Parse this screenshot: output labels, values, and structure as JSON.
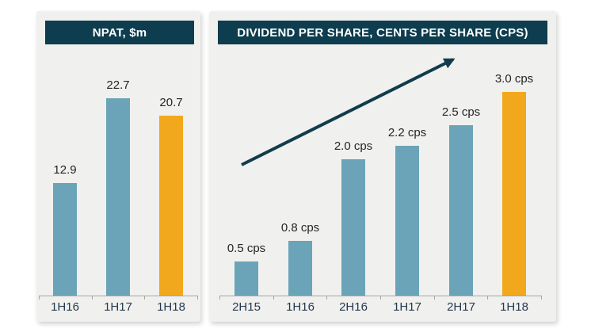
{
  "colors": {
    "bar": "#6BA4B8",
    "highlight": "#F2A81D",
    "header_bg": "#0D3D4E",
    "header_text": "#FFFFFF",
    "panel_bg": "#F0F0EE",
    "axis": "#A6A6A6",
    "value_label": "#262626",
    "category_label": "#24384E",
    "arrow": "#113C4B"
  },
  "chart_data": [
    {
      "type": "bar",
      "title": "NPAT, $m",
      "categories": [
        "1H16",
        "1H17",
        "1H18"
      ],
      "values": [
        12.9,
        22.7,
        20.7
      ],
      "labels": [
        "12.9",
        "22.7",
        "20.7"
      ],
      "highlight_index": 2,
      "ylim": [
        0,
        24
      ],
      "grid": false,
      "legend": false
    },
    {
      "type": "bar",
      "title": "DIVIDEND PER SHARE, CENTS PER SHARE (CPS)",
      "categories": [
        "2H15",
        "1H16",
        "2H16",
        "1H17",
        "2H17",
        "1H18"
      ],
      "values": [
        0.5,
        0.8,
        2.0,
        2.2,
        2.5,
        3.0
      ],
      "labels": [
        "0.5 cps",
        "0.8 cps",
        "2.0 cps",
        "2.2 cps",
        "2.5 cps",
        "3.0 cps"
      ],
      "highlight_index": 5,
      "ylim": [
        0,
        3.3
      ],
      "grid": false,
      "legend": false,
      "annotation": "upward trend arrow"
    }
  ]
}
